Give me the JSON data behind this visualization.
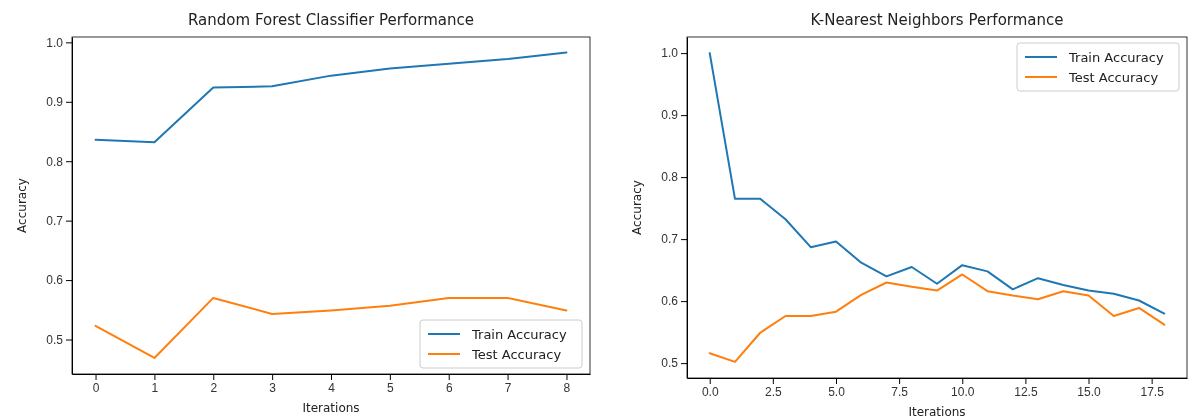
{
  "chart_data": [
    {
      "type": "line",
      "title": "Random Forest Classifier Performance",
      "xlabel": "Iterations",
      "ylabel": "Accuracy",
      "x": [
        0,
        1,
        2,
        3,
        4,
        5,
        6,
        7,
        8
      ],
      "xlim": [
        -0.4,
        8.4
      ],
      "xticks": [
        0,
        1,
        2,
        3,
        4,
        5,
        6,
        7,
        8
      ],
      "ylim": [
        0.442,
        1.009
      ],
      "yticks": [
        {
          "value": 0.5,
          "label": "0.5"
        },
        {
          "value": 0.6,
          "label": "0.6"
        },
        {
          "value": 0.7,
          "label": "0.7"
        },
        {
          "value": 0.8,
          "label": "0.8"
        },
        {
          "value": 0.9,
          "label": "0.9"
        },
        {
          "value": 1.0,
          "label": "1.0"
        }
      ],
      "legend": "bottom right",
      "grid": false,
      "marker": "none",
      "line_style": "solid",
      "series": [
        {
          "name": "Train Accuracy",
          "color": "#1f77b4",
          "values": [
            0.836,
            0.832,
            0.924,
            0.926,
            0.944,
            0.956,
            0.964,
            0.972,
            0.983
          ]
        },
        {
          "name": "Test Accuracy",
          "color": "#ff7f0e",
          "values": [
            0.523,
            0.469,
            0.57,
            0.543,
            0.549,
            0.557,
            0.57,
            0.57,
            0.549
          ]
        }
      ]
    },
    {
      "type": "line",
      "title": "K-Nearest Neighbors Performance",
      "xlabel": "Iterations",
      "ylabel": "Accuracy",
      "x": [
        0,
        1,
        2,
        3,
        4,
        5,
        6,
        7,
        8,
        9,
        10,
        11,
        12,
        13,
        14,
        15,
        16,
        17,
        18
      ],
      "xlim": [
        -0.9,
        18.9
      ],
      "xticks": [
        {
          "value": 0,
          "label": "0.0"
        },
        {
          "value": 2.5,
          "label": "2.5"
        },
        {
          "value": 5,
          "label": "5.0"
        },
        {
          "value": 7.5,
          "label": "7.5"
        },
        {
          "value": 10,
          "label": "10.0"
        },
        {
          "value": 12.5,
          "label": "12.5"
        },
        {
          "value": 15,
          "label": "15.0"
        },
        {
          "value": 17.5,
          "label": "17.5"
        }
      ],
      "ylim": [
        0.476,
        1.026
      ],
      "yticks": [
        {
          "value": 0.5,
          "label": "0.5"
        },
        {
          "value": 0.6,
          "label": "0.6"
        },
        {
          "value": 0.7,
          "label": "0.7"
        },
        {
          "value": 0.8,
          "label": "0.8"
        },
        {
          "value": 0.9,
          "label": "0.9"
        },
        {
          "value": 1.0,
          "label": "1.0"
        }
      ],
      "legend": "top right",
      "grid": false,
      "marker": "none",
      "line_style": "solid",
      "series": [
        {
          "name": "Train Accuracy",
          "color": "#1f77b4",
          "values": [
            1.0,
            0.765,
            0.765,
            0.732,
            0.687,
            0.696,
            0.662,
            0.64,
            0.655,
            0.628,
            0.658,
            0.648,
            0.619,
            0.637,
            0.626,
            0.617,
            0.612,
            0.601,
            0.58
          ]
        },
        {
          "name": "Test Accuracy",
          "color": "#ff7f0e",
          "values": [
            0.516,
            0.502,
            0.549,
            0.576,
            0.576,
            0.583,
            0.61,
            0.63,
            0.623,
            0.617,
            0.643,
            0.616,
            0.609,
            0.603,
            0.616,
            0.609,
            0.576,
            0.589,
            0.562
          ]
        }
      ]
    }
  ]
}
